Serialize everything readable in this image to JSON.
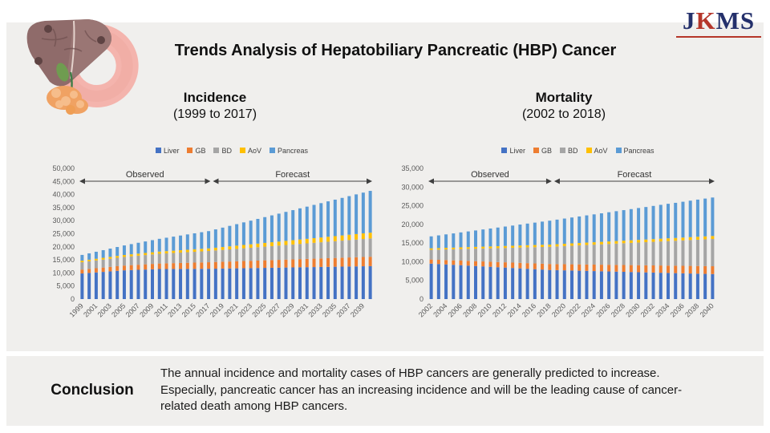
{
  "header": {
    "logo_text": "JKMS",
    "title": "Trends Analysis of Hepatobiliary Pancreatic (HBP) Cancer"
  },
  "sections": {
    "incidence": {
      "heading": "Incidence",
      "subheading": "(1999 to 2017)"
    },
    "mortality": {
      "heading": "Mortality",
      "subheading": "(2002 to 2018)"
    }
  },
  "conclusion": {
    "label": "Conclusion",
    "lines": [
      "The annual incidence and mortality cases of HBP cancers are generally predicted to increase.",
      "Especially, pancreatic cancer has an increasing incidence and will be the leading cause of cancer-",
      "related death among HBP cancers."
    ]
  },
  "colors": {
    "panel_bg": "#f0efed",
    "logo_navy": "#24306b",
    "logo_red": "#b5362a",
    "liver": "#4472C4",
    "gb": "#ED7D31",
    "bd": "#A5A5A5",
    "aov": "#FFC000",
    "pancreas": "#5B9BD5",
    "arrow": "#3f3f3f"
  },
  "chart_data": [
    {
      "type": "bar",
      "stacked": true,
      "title": "Incidence (1999 to 2017)",
      "xlabel": "",
      "ylabel": "",
      "ylim": [
        0,
        50000
      ],
      "ytick_step": 5000,
      "grid": false,
      "legend_position": "top",
      "x_tick_every": 2,
      "x": [
        1999,
        2000,
        2001,
        2002,
        2003,
        2004,
        2005,
        2006,
        2007,
        2008,
        2009,
        2010,
        2011,
        2012,
        2013,
        2014,
        2015,
        2016,
        2017,
        2018,
        2019,
        2020,
        2021,
        2022,
        2023,
        2024,
        2025,
        2026,
        2027,
        2028,
        2029,
        2030,
        2031,
        2032,
        2033,
        2034,
        2035,
        2036,
        2037,
        2038,
        2039,
        2040
      ],
      "annotations": [
        {
          "label": "Observed",
          "from": 1999,
          "to": 2017
        },
        {
          "label": "Forecast",
          "from": 2018,
          "to": 2040
        }
      ],
      "series": [
        {
          "name": "Liver",
          "color": "#4472C4",
          "values": [
            9800,
            10000,
            10200,
            10400,
            10600,
            10800,
            11000,
            11100,
            11200,
            11300,
            11400,
            11500,
            11510,
            11530,
            11540,
            11560,
            11570,
            11590,
            11600,
            11640,
            11690,
            11730,
            11770,
            11820,
            11860,
            11900,
            11950,
            11990,
            12030,
            12080,
            12120,
            12170,
            12210,
            12250,
            12300,
            12340,
            12380,
            12430,
            12470,
            12510,
            12560,
            12600
          ]
        },
        {
          "name": "GB",
          "color": "#ED7D31",
          "values": [
            1500,
            1560,
            1610,
            1670,
            1720,
            1780,
            1830,
            1890,
            1940,
            2000,
            2060,
            2110,
            2170,
            2220,
            2280,
            2330,
            2390,
            2440,
            2500,
            2550,
            2600,
            2640,
            2690,
            2740,
            2790,
            2830,
            2880,
            2930,
            2980,
            3030,
            3070,
            3120,
            3170,
            3220,
            3260,
            3310,
            3360,
            3410,
            3460,
            3500,
            3550,
            3600
          ]
        },
        {
          "name": "BD",
          "color": "#A5A5A5",
          "values": [
            2800,
            2880,
            2970,
            3050,
            3130,
            3220,
            3300,
            3380,
            3470,
            3550,
            3630,
            3720,
            3800,
            3880,
            3970,
            4050,
            4130,
            4220,
            4300,
            4420,
            4530,
            4650,
            4770,
            4890,
            5000,
            5120,
            5240,
            5360,
            5470,
            5590,
            5710,
            5830,
            5940,
            6060,
            6180,
            6300,
            6410,
            6530,
            6650,
            6770,
            6880,
            7000
          ]
        },
        {
          "name": "AoV",
          "color": "#FFC000",
          "values": [
            600,
            620,
            640,
            670,
            690,
            710,
            730,
            760,
            780,
            800,
            820,
            840,
            870,
            890,
            910,
            930,
            960,
            980,
            1000,
            1050,
            1100,
            1160,
            1210,
            1260,
            1310,
            1370,
            1420,
            1470,
            1520,
            1570,
            1630,
            1680,
            1730,
            1780,
            1830,
            1890,
            1940,
            1990,
            2040,
            2100,
            2150,
            2200
          ]
        },
        {
          "name": "Pancreas",
          "color": "#5B9BD5",
          "values": [
            2200,
            2440,
            2690,
            2930,
            3180,
            3420,
            3670,
            3910,
            4160,
            4400,
            4640,
            4890,
            5130,
            5380,
            5620,
            5870,
            6110,
            6360,
            6600,
            7010,
            7420,
            7830,
            8230,
            8640,
            9050,
            9460,
            9870,
            10280,
            10690,
            11090,
            11500,
            11910,
            12320,
            12730,
            13140,
            13550,
            13950,
            14360,
            14770,
            15180,
            15590,
            16000
          ]
        }
      ]
    },
    {
      "type": "bar",
      "stacked": true,
      "title": "Mortality (2002 to 2018)",
      "xlabel": "",
      "ylabel": "",
      "ylim": [
        0,
        35000
      ],
      "ytick_step": 5000,
      "grid": false,
      "legend_position": "top",
      "x_tick_every": 2,
      "x": [
        2002,
        2003,
        2004,
        2005,
        2006,
        2007,
        2008,
        2009,
        2010,
        2011,
        2012,
        2013,
        2014,
        2015,
        2016,
        2017,
        2018,
        2019,
        2020,
        2021,
        2022,
        2023,
        2024,
        2025,
        2026,
        2027,
        2028,
        2029,
        2030,
        2031,
        2032,
        2033,
        2034,
        2035,
        2036,
        2037,
        2038,
        2039,
        2040
      ],
      "annotations": [
        {
          "label": "Observed",
          "from": 2002,
          "to": 2018
        },
        {
          "label": "Forecast",
          "from": 2019,
          "to": 2040
        }
      ],
      "series": [
        {
          "name": "Liver",
          "color": "#4472C4",
          "values": [
            9500,
            9390,
            9290,
            9180,
            9080,
            8970,
            8860,
            8760,
            8650,
            8540,
            8440,
            8330,
            8230,
            8120,
            8010,
            7910,
            7800,
            7750,
            7700,
            7650,
            7600,
            7550,
            7500,
            7450,
            7400,
            7350,
            7300,
            7250,
            7200,
            7150,
            7100,
            7050,
            7000,
            6950,
            6900,
            6850,
            6800,
            6750,
            6700
          ]
        },
        {
          "name": "GB",
          "color": "#ED7D31",
          "values": [
            1100,
            1130,
            1160,
            1190,
            1230,
            1260,
            1290,
            1320,
            1350,
            1380,
            1410,
            1440,
            1480,
            1510,
            1540,
            1570,
            1600,
            1620,
            1650,
            1670,
            1690,
            1720,
            1740,
            1760,
            1790,
            1810,
            1830,
            1850,
            1880,
            1900,
            1920,
            1950,
            1970,
            1990,
            2010,
            2040,
            2060,
            2080,
            2100
          ]
        },
        {
          "name": "BD",
          "color": "#A5A5A5",
          "values": [
            2600,
            2730,
            2850,
            2980,
            3100,
            3230,
            3350,
            3480,
            3600,
            3730,
            3850,
            3980,
            4100,
            4230,
            4350,
            4480,
            4600,
            4720,
            4850,
            4970,
            5090,
            5210,
            5340,
            5460,
            5580,
            5700,
            5830,
            5950,
            6070,
            6190,
            6320,
            6440,
            6560,
            6680,
            6810,
            6930,
            7050,
            7180,
            7300
          ]
        },
        {
          "name": "AoV",
          "color": "#FFC000",
          "values": [
            400,
            410,
            430,
            440,
            450,
            460,
            480,
            490,
            500,
            510,
            530,
            540,
            550,
            560,
            580,
            590,
            600,
            610,
            620,
            630,
            640,
            650,
            650,
            660,
            670,
            680,
            690,
            700,
            710,
            720,
            730,
            740,
            750,
            750,
            760,
            770,
            780,
            790,
            800
          ]
        },
        {
          "name": "Pancreas",
          "color": "#5B9BD5",
          "values": [
            3200,
            3400,
            3600,
            3800,
            4000,
            4200,
            4400,
            4600,
            4800,
            5000,
            5200,
            5400,
            5600,
            5800,
            6000,
            6200,
            6400,
            6580,
            6750,
            6930,
            7110,
            7290,
            7460,
            7640,
            7820,
            8000,
            8170,
            8350,
            8530,
            8700,
            8880,
            9060,
            9240,
            9410,
            9590,
            9770,
            9950,
            10120,
            10300
          ]
        }
      ]
    }
  ]
}
